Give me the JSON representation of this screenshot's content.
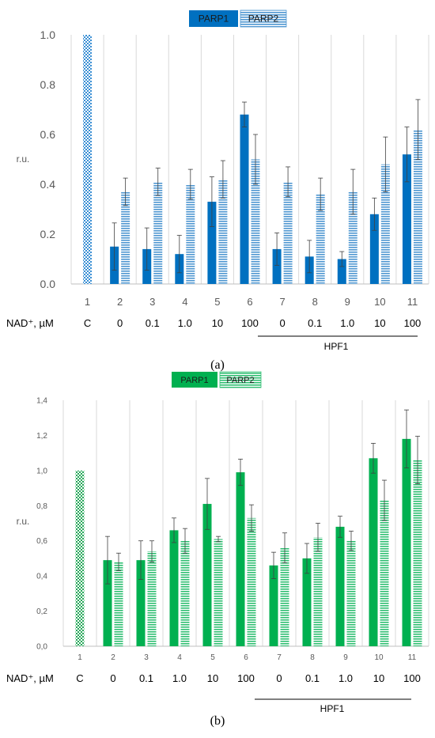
{
  "chart_data": [
    {
      "type": "bar",
      "panel_label": "(a)",
      "legend": {
        "placement": "top-center",
        "entries": [
          "PARP1",
          "PARP2"
        ]
      },
      "ylabel": "r.u.",
      "ylim": [
        0,
        1.0
      ],
      "yticks": [
        "0.0",
        "0.2",
        "0.4",
        "0.6",
        "0.8",
        "1.0"
      ],
      "grid": "vertical",
      "categories": [
        "1",
        "2",
        "3",
        "4",
        "5",
        "6",
        "7",
        "8",
        "9",
        "10",
        "11"
      ],
      "nad_label": "NAD⁺, µM",
      "nad_values": [
        "C",
        "0",
        "0.1",
        "1.0",
        "10",
        "100",
        "0",
        "0.1",
        "1.0",
        "10",
        "100"
      ],
      "group_label": "HPF1",
      "control": {
        "category": "1",
        "value": 1.0
      },
      "series": [
        {
          "name": "PARP1",
          "values": [
            null,
            0.15,
            0.14,
            0.12,
            0.33,
            0.68,
            0.14,
            0.11,
            0.1,
            0.28,
            0.52
          ],
          "errors": [
            null,
            0.095,
            0.085,
            0.075,
            0.1,
            0.05,
            0.065,
            0.065,
            0.03,
            0.065,
            0.11
          ]
        },
        {
          "name": "PARP2",
          "values": [
            null,
            0.37,
            0.41,
            0.4,
            0.42,
            0.5,
            0.41,
            0.36,
            0.37,
            0.48,
            0.62
          ],
          "errors": [
            null,
            0.055,
            0.055,
            0.06,
            0.075,
            0.1,
            0.06,
            0.065,
            0.09,
            0.11,
            0.12
          ]
        }
      ],
      "colors": {
        "parp1": "#0070c0",
        "parp2": "#4f97d1",
        "control": "#3a8fd4"
      }
    },
    {
      "type": "bar",
      "panel_label": "(b)",
      "legend": {
        "placement": "top-center",
        "entries": [
          "PARP1",
          "PARP2"
        ]
      },
      "ylabel": "r.u.",
      "ylim": [
        0,
        1.4
      ],
      "yticks": [
        "0,0",
        "0,2",
        "0,4",
        "0,6",
        "0,8",
        "1,0",
        "1,2",
        "1,4"
      ],
      "grid": "vertical",
      "categories": [
        "1",
        "2",
        "3",
        "4",
        "5",
        "6",
        "7",
        "8",
        "9",
        "10",
        "11"
      ],
      "nad_label": "NAD⁺, µM",
      "nad_values": [
        "C",
        "0",
        "0.1",
        "1.0",
        "10",
        "100",
        "0",
        "0.1",
        "1.0",
        "10",
        "100"
      ],
      "group_label": "HPF1",
      "control": {
        "category": "1",
        "value": 1.0
      },
      "series": [
        {
          "name": "PARP1",
          "values": [
            null,
            0.49,
            0.49,
            0.66,
            0.81,
            0.99,
            0.46,
            0.5,
            0.68,
            1.07,
            1.18
          ],
          "errors": [
            null,
            0.135,
            0.11,
            0.07,
            0.145,
            0.075,
            0.075,
            0.085,
            0.06,
            0.085,
            0.165
          ]
        },
        {
          "name": "PARP2",
          "values": [
            null,
            0.48,
            0.54,
            0.6,
            0.61,
            0.73,
            0.56,
            0.62,
            0.6,
            0.83,
            1.06
          ],
          "errors": [
            null,
            0.05,
            0.06,
            0.07,
            0.015,
            0.075,
            0.085,
            0.08,
            0.055,
            0.115,
            0.135
          ]
        }
      ],
      "colors": {
        "parp1": "#00b050",
        "parp2": "#2fbf72",
        "control": "#27a85a"
      }
    }
  ]
}
